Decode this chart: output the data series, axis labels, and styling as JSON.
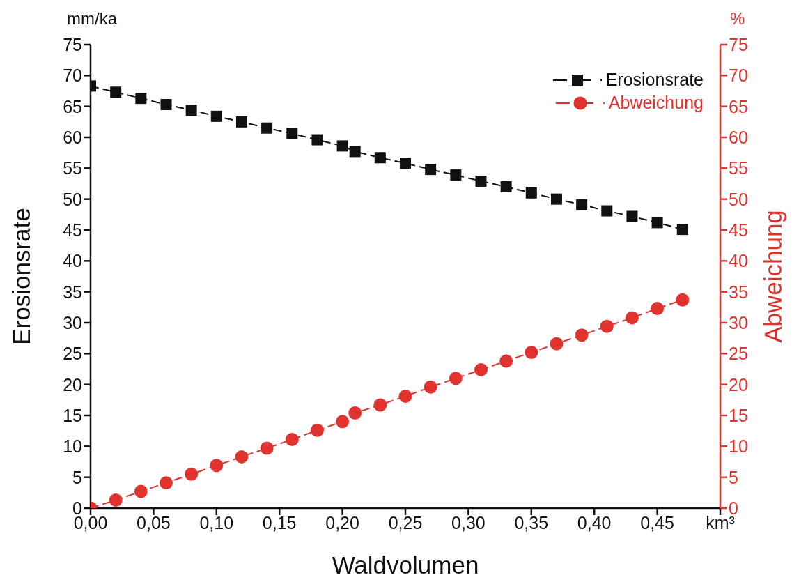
{
  "chart_data": {
    "type": "line",
    "xlabel": "Waldvolumen",
    "ylabel": "Erosionsrate",
    "y2label": "Abweichung",
    "annotations": [
      "mm/ka",
      "%"
    ],
    "x": [
      0,
      0.02,
      0.04,
      0.06,
      0.08,
      0.1,
      0.12,
      0.14,
      0.16,
      0.18,
      0.2,
      0.21,
      0.23,
      0.25,
      0.27,
      0.29,
      0.31,
      0.33,
      0.35,
      0.37,
      0.39,
      0.41,
      0.43,
      0.45,
      0.47
    ],
    "series": [
      {
        "name": "Erosionsrate",
        "color": "#111111",
        "marker": "square",
        "values": [
          68.3,
          67.3,
          66.3,
          65.3,
          64.4,
          63.4,
          62.5,
          61.5,
          60.6,
          59.6,
          58.6,
          57.7,
          56.7,
          55.8,
          54.8,
          53.9,
          52.9,
          52.0,
          51.0,
          50.0,
          49.1,
          48.1,
          47.2,
          46.2,
          45.1
        ]
      },
      {
        "name": "Abweichung",
        "color": "#e0332f",
        "marker": "circle",
        "axis": "y2",
        "values": [
          0,
          1.3,
          2.7,
          4.1,
          5.5,
          6.9,
          8.3,
          9.7,
          11.1,
          12.6,
          14.0,
          15.4,
          16.7,
          18.1,
          19.6,
          21.0,
          22.4,
          23.8,
          25.2,
          26.6,
          28.0,
          29.4,
          30.8,
          32.3,
          33.7
        ]
      }
    ],
    "line_style": "dashed",
    "legend": "top right",
    "grid": false,
    "xlim": [
      0,
      0.5
    ],
    "xticks": [
      {
        "value": 0,
        "label": "0,00"
      },
      {
        "value": 0.05,
        "label": "0,05"
      },
      {
        "value": 0.1,
        "label": "0,10"
      },
      {
        "value": 0.15,
        "label": "0,15"
      },
      {
        "value": 0.2,
        "label": "0,20"
      },
      {
        "value": 0.25,
        "label": "0,25"
      },
      {
        "value": 0.3,
        "label": "0,30"
      },
      {
        "value": 0.35,
        "label": "0,35"
      },
      {
        "value": 0.4,
        "label": "0,40"
      },
      {
        "value": 0.45,
        "label": "0,45"
      },
      {
        "value": 0.5,
        "label": "km³"
      }
    ],
    "ylim": [
      0,
      75
    ],
    "yticks": [
      0,
      5,
      10,
      15,
      20,
      25,
      30,
      35,
      40,
      45,
      50,
      55,
      60,
      65,
      70,
      75
    ],
    "y2lim": [
      0,
      75
    ],
    "y2ticks": [
      0,
      5,
      10,
      15,
      20,
      25,
      30,
      35,
      40,
      45,
      50,
      55,
      60,
      65,
      70,
      75
    ]
  }
}
